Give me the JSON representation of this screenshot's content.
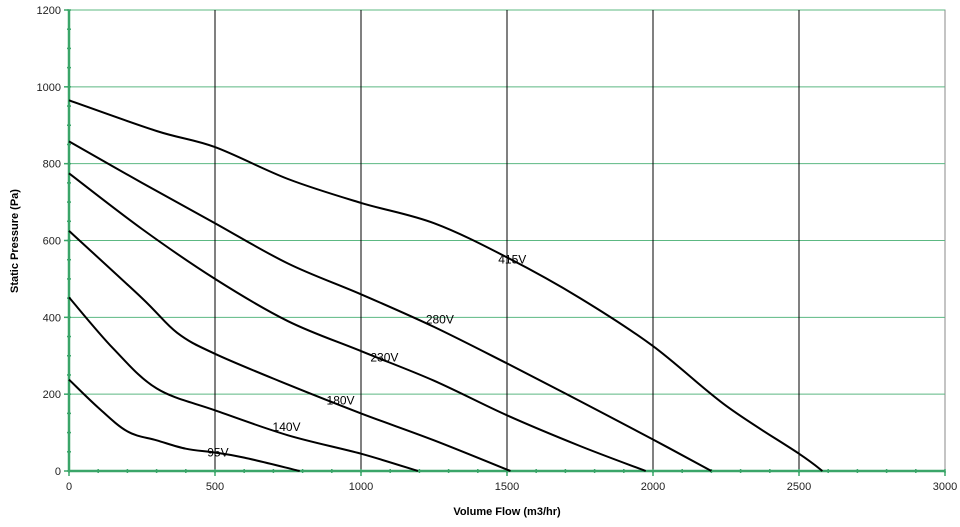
{
  "chart_data": {
    "type": "line",
    "title": "",
    "xlabel": "Volume Flow (m3/hr)",
    "ylabel": "Static Pressure (Pa)",
    "xlim": [
      0,
      3000
    ],
    "ylim": [
      0,
      1200
    ],
    "xticks": [
      0,
      500,
      1000,
      1500,
      2000,
      2500,
      3000
    ],
    "yticks": [
      0,
      200,
      400,
      600,
      800,
      1000,
      1200
    ],
    "grid": {
      "vertical": true,
      "horizontal": true
    },
    "legend": "none",
    "colors": {
      "grid_vertical": "#000000",
      "grid_horizontal": "#5cb882",
      "axes": "#3aa569",
      "series": "#000000"
    },
    "series": [
      {
        "name": "415V",
        "label_at": [
          1518,
          551
        ],
        "points": [
          [
            0,
            965
          ],
          [
            300,
            885
          ],
          [
            500,
            843
          ],
          [
            750,
            760
          ],
          [
            1000,
            698
          ],
          [
            1250,
            645
          ],
          [
            1500,
            556
          ],
          [
            1750,
            450
          ],
          [
            2000,
            325
          ],
          [
            2250,
            170
          ],
          [
            2500,
            45
          ],
          [
            2580,
            0
          ]
        ]
      },
      {
        "name": "280V",
        "label_at": [
          1270,
          395
        ],
        "points": [
          [
            0,
            858
          ],
          [
            250,
            750
          ],
          [
            500,
            645
          ],
          [
            750,
            540
          ],
          [
            1000,
            460
          ],
          [
            1250,
            375
          ],
          [
            1500,
            280
          ],
          [
            1750,
            182
          ],
          [
            2000,
            82
          ],
          [
            2200,
            0
          ]
        ]
      },
      {
        "name": "230V",
        "label_at": [
          1080,
          295
        ],
        "points": [
          [
            0,
            775
          ],
          [
            250,
            630
          ],
          [
            500,
            500
          ],
          [
            750,
            390
          ],
          [
            1000,
            312
          ],
          [
            1250,
            235
          ],
          [
            1500,
            145
          ],
          [
            1750,
            65
          ],
          [
            1975,
            0
          ]
        ]
      },
      {
        "name": "180V",
        "label_at": [
          930,
          183
        ],
        "points": [
          [
            0,
            625
          ],
          [
            250,
            450
          ],
          [
            370,
            360
          ],
          [
            500,
            305
          ],
          [
            750,
            225
          ],
          [
            1000,
            150
          ],
          [
            1250,
            80
          ],
          [
            1512,
            0
          ]
        ]
      },
      {
        "name": "140V",
        "label_at": [
          745,
          114
        ],
        "points": [
          [
            0,
            452
          ],
          [
            150,
            320
          ],
          [
            300,
            215
          ],
          [
            500,
            158
          ],
          [
            750,
            93
          ],
          [
            1000,
            45
          ],
          [
            1195,
            0
          ]
        ]
      },
      {
        "name": "95V",
        "label_at": [
          510,
          48
        ],
        "points": [
          [
            0,
            238
          ],
          [
            100,
            165
          ],
          [
            200,
            103
          ],
          [
            300,
            80
          ],
          [
            400,
            58
          ],
          [
            500,
            48
          ],
          [
            600,
            35
          ],
          [
            790,
            0
          ]
        ]
      }
    ]
  }
}
